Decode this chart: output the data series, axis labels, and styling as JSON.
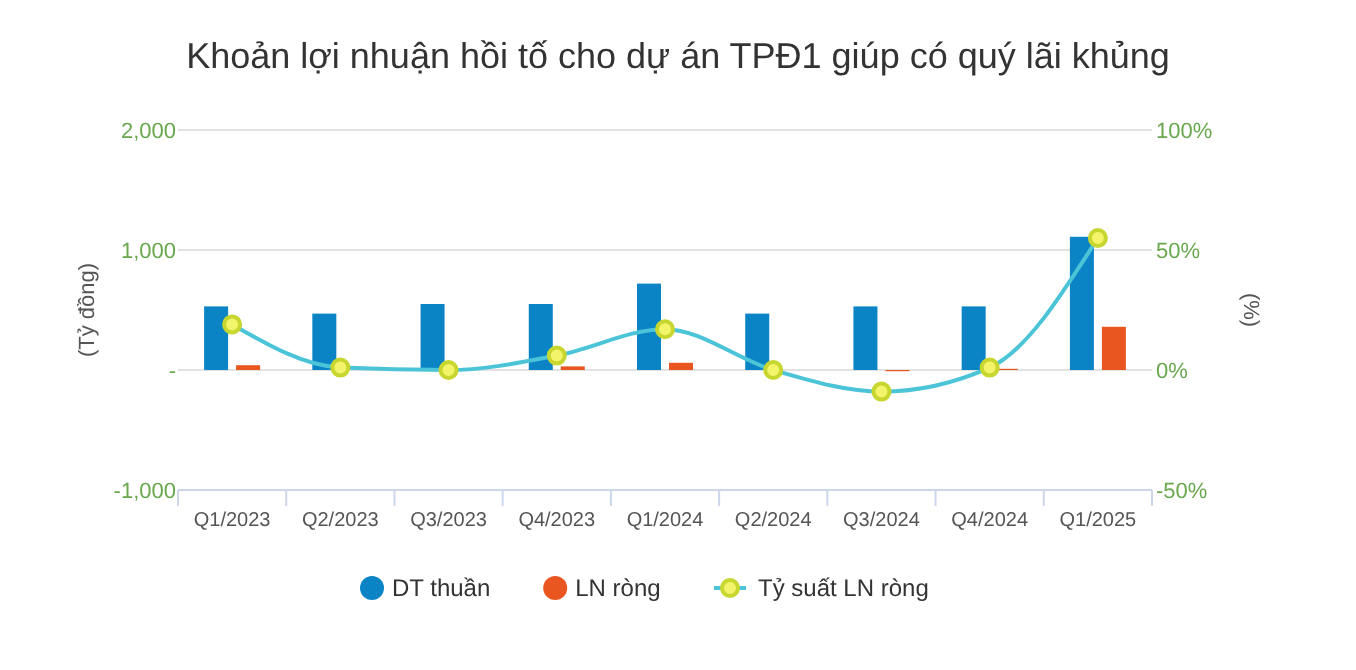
{
  "chart_data": {
    "type": "bar",
    "title": "Khoản lợi nhuận hồi tố cho dự án TPĐ1 giúp có quý lãi khủng",
    "ylabel": "(Tỷ đồng)",
    "y2label": "(%)",
    "categories": [
      "Q1/2023",
      "Q2/2023",
      "Q3/2023",
      "Q4/2023",
      "Q1/2024",
      "Q2/2024",
      "Q3/2024",
      "Q4/2024",
      "Q1/2025"
    ],
    "series": [
      {
        "name": "DT thuần",
        "color": "#0b84c6",
        "values": [
          530,
          470,
          550,
          550,
          720,
          470,
          530,
          530,
          1110
        ]
      },
      {
        "name": "LN ròng",
        "color": "#e9561f",
        "values": [
          40,
          null,
          null,
          30,
          60,
          null,
          -10,
          10,
          360
        ]
      },
      {
        "name": "Tỷ suất LN ròng",
        "type": "line",
        "axis": "y2",
        "color": "#4cc4d8",
        "marker": "circle",
        "values": [
          19,
          1,
          0,
          6,
          17,
          0,
          -9,
          1,
          55
        ]
      }
    ],
    "ylim": [
      -1000,
      2000
    ],
    "yticks": [
      {
        "value": 2000,
        "label": "2,000"
      },
      {
        "value": 1000,
        "label": "1,000"
      },
      {
        "value": 0,
        "label": "-"
      },
      {
        "value": -1000,
        "label": "-1,000"
      }
    ],
    "y2lim": [
      -50,
      100
    ],
    "y2ticks": [
      {
        "value": 100,
        "label": "100%"
      },
      {
        "value": 50,
        "label": "50%"
      },
      {
        "value": 0,
        "label": "0%"
      },
      {
        "value": -50,
        "label": "-50%"
      }
    ],
    "grid": "y",
    "legend": "bottom"
  }
}
